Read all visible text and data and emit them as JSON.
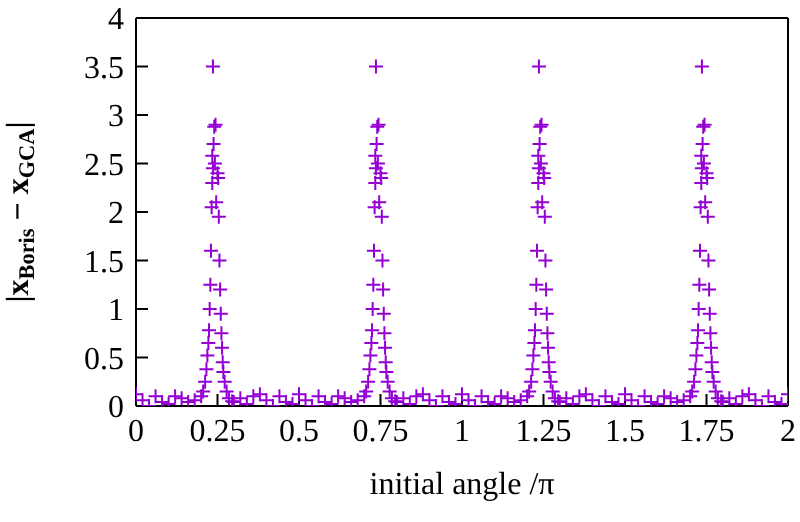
{
  "chart_data": {
    "type": "scatter",
    "xlabel": "initial angle /π",
    "ylabel": "|x$_{Boris}$ − x$_{GCA}$|",
    "marker": "cross",
    "xlim": [
      0,
      2
    ],
    "xticks": [
      0,
      0.25,
      0.5,
      0.75,
      1,
      1.25,
      1.5,
      1.75,
      2
    ],
    "ylim": [
      0,
      4
    ],
    "yticks": [
      0,
      0.5,
      1,
      1.5,
      2,
      2.5,
      3,
      3.5,
      4
    ],
    "series": [
      {
        "color": "#9400d3",
        "x": [
          0,
          0.02,
          0.04,
          0.06,
          0.08,
          0.1,
          0.12,
          0.14,
          0.16,
          0.18,
          0.2,
          0.206,
          0.212,
          0.216,
          0.219,
          0.222,
          0.224,
          0.226,
          0.228,
          0.23,
          0.232,
          0.234,
          0.236,
          0.234,
          0.238,
          0.236,
          0.24,
          0.244,
          0.242,
          0.246,
          0.25,
          0.252,
          0.254,
          0.256,
          0.258,
          0.26,
          0.262,
          0.264,
          0.266,
          0.268,
          0.272,
          0.278,
          0.285,
          0.295,
          0.3,
          0.32,
          0.34,
          0.36,
          0.38,
          0.4,
          0.42,
          0.44,
          0.46,
          0.48,
          0.5,
          0.52,
          0.54,
          0.56,
          0.58,
          0.6,
          0.62,
          0.64,
          0.66,
          0.68,
          0.7,
          0.706,
          0.712,
          0.716,
          0.719,
          0.722,
          0.724,
          0.726,
          0.728,
          0.73,
          0.732,
          0.734,
          0.736,
          0.734,
          0.738,
          0.736,
          0.74,
          0.744,
          0.742,
          0.746,
          0.75,
          0.752,
          0.754,
          0.756,
          0.758,
          0.76,
          0.762,
          0.764,
          0.766,
          0.768,
          0.772,
          0.778,
          0.785,
          0.795,
          0.8,
          0.82,
          0.84,
          0.86,
          0.88,
          0.9,
          0.92,
          0.94,
          0.96,
          0.98,
          1,
          1.02,
          1.04,
          1.06,
          1.08,
          1.1,
          1.12,
          1.14,
          1.16,
          1.18,
          1.2,
          1.206,
          1.212,
          1.216,
          1.219,
          1.222,
          1.224,
          1.226,
          1.228,
          1.23,
          1.232,
          1.234,
          1.236,
          1.234,
          1.238,
          1.236,
          1.24,
          1.244,
          1.242,
          1.246,
          1.25,
          1.252,
          1.254,
          1.256,
          1.258,
          1.26,
          1.262,
          1.264,
          1.266,
          1.268,
          1.272,
          1.278,
          1.285,
          1.295,
          1.3,
          1.32,
          1.34,
          1.36,
          1.38,
          1.4,
          1.42,
          1.44,
          1.46,
          1.48,
          1.5,
          1.52,
          1.54,
          1.56,
          1.58,
          1.6,
          1.62,
          1.64,
          1.66,
          1.68,
          1.7,
          1.706,
          1.712,
          1.716,
          1.719,
          1.722,
          1.724,
          1.726,
          1.728,
          1.73,
          1.732,
          1.734,
          1.736,
          1.734,
          1.738,
          1.736,
          1.74,
          1.744,
          1.742,
          1.746,
          1.75,
          1.752,
          1.754,
          1.756,
          1.758,
          1.76,
          1.762,
          1.764,
          1.766,
          1.768,
          1.772,
          1.778,
          1.785,
          1.795,
          1.8,
          1.82,
          1.84,
          1.86,
          1.88,
          1.9,
          1.92,
          1.94,
          1.96,
          1.98,
          2
        ],
        "values": [
          0.12,
          0.06,
          0,
          0.1,
          0.04,
          0.02,
          0.1,
          0.08,
          0.04,
          0.06,
          0.1,
          0.15,
          0.25,
          0.38,
          0.52,
          0.65,
          0.78,
          1,
          1.25,
          1.6,
          2.05,
          2.3,
          2.45,
          2.58,
          2.7,
          3.5,
          2.88,
          2.9,
          2.5,
          2.1,
          2.4,
          2.35,
          1.95,
          1.5,
          1.2,
          0.95,
          0.75,
          0.6,
          0.45,
          0.35,
          0.25,
          0.15,
          0.08,
          0.05,
          0.04,
          0.08,
          0.02,
          0.1,
          0.12,
          0.06,
          0,
          0.1,
          0.04,
          0.02,
          0.12,
          0.06,
          0,
          0.1,
          0.04,
          0.02,
          0.1,
          0.08,
          0.04,
          0.06,
          0.1,
          0.15,
          0.25,
          0.38,
          0.52,
          0.65,
          0.78,
          1,
          1.25,
          1.6,
          2.05,
          2.3,
          2.45,
          2.58,
          2.7,
          3.5,
          2.88,
          2.9,
          2.5,
          2.1,
          2.4,
          2.35,
          1.95,
          1.5,
          1.2,
          0.95,
          0.75,
          0.6,
          0.45,
          0.35,
          0.25,
          0.15,
          0.08,
          0.05,
          0.04,
          0.08,
          0.02,
          0.1,
          0.12,
          0.06,
          0,
          0.1,
          0.04,
          0.02,
          0.12,
          0.06,
          0,
          0.1,
          0.04,
          0.02,
          0.1,
          0.08,
          0.04,
          0.06,
          0.1,
          0.15,
          0.25,
          0.38,
          0.52,
          0.65,
          0.78,
          1,
          1.25,
          1.6,
          2.05,
          2.3,
          2.45,
          2.58,
          2.7,
          3.5,
          2.88,
          2.9,
          2.5,
          2.1,
          2.4,
          2.35,
          1.95,
          1.5,
          1.2,
          0.95,
          0.75,
          0.6,
          0.45,
          0.35,
          0.25,
          0.15,
          0.08,
          0.05,
          0.04,
          0.08,
          0.02,
          0.1,
          0.12,
          0.06,
          0,
          0.1,
          0.04,
          0.02,
          0.12,
          0.06,
          0,
          0.1,
          0.04,
          0.02,
          0.1,
          0.08,
          0.04,
          0.06,
          0.1,
          0.15,
          0.25,
          0.38,
          0.52,
          0.65,
          0.78,
          1,
          1.25,
          1.6,
          2.05,
          2.3,
          2.45,
          2.58,
          2.7,
          3.5,
          2.88,
          2.9,
          2.5,
          2.1,
          2.4,
          2.35,
          1.95,
          1.5,
          1.2,
          0.95,
          0.75,
          0.6,
          0.45,
          0.35,
          0.25,
          0.15,
          0.08,
          0.05,
          0.04,
          0.08,
          0.02,
          0.1,
          0.12,
          0.06,
          0,
          0.1,
          0.04,
          0.02,
          0.12
        ]
      }
    ]
  }
}
